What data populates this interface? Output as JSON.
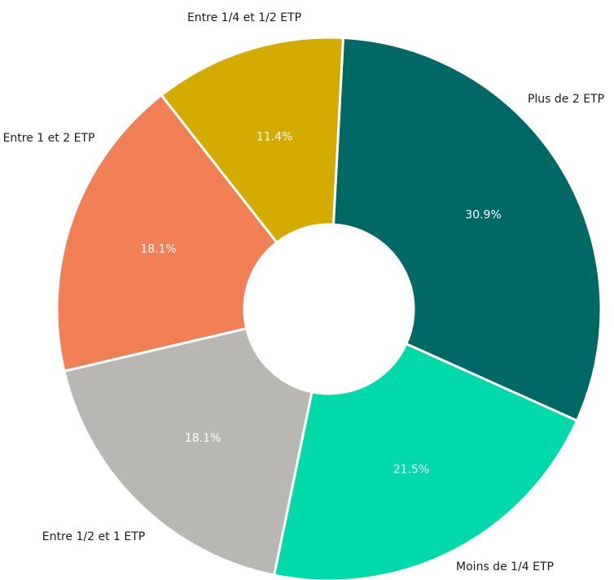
{
  "chart_data": {
    "type": "pie",
    "categories": [
      "Plus de 2 ETP",
      "Moins de 1/4 ETP",
      "Entre 1/2 et 1 ETP",
      "Entre 1 et 2 ETP",
      "Entre 1/4 et 1/2 ETP"
    ],
    "values": [
      30.9,
      21.5,
      18.1,
      18.1,
      11.4
    ],
    "value_labels": [
      "30.9%",
      "21.5%",
      "18.1%",
      "18.1%",
      "11.4%"
    ],
    "colors": [
      "#006966",
      "#00d9a9",
      "#b9b7b3",
      "#f17f56",
      "#d4ab00"
    ],
    "donut": true
  }
}
